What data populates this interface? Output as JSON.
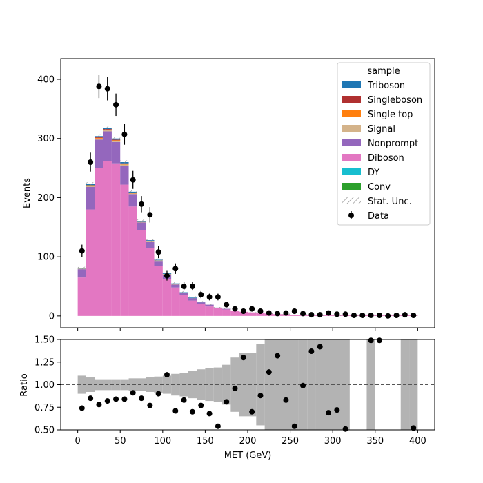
{
  "chart_data": [
    {
      "type": "bar",
      "stacked": true,
      "ylabel": "Events",
      "ylim": [
        -20,
        435
      ],
      "yticks": [
        0,
        100,
        200,
        300,
        400
      ],
      "xlim": [
        -20,
        420
      ],
      "bin_edges": [
        0,
        10,
        20,
        30,
        40,
        50,
        60,
        70,
        80,
        90,
        100,
        110,
        120,
        130,
        140,
        150,
        160,
        170,
        180,
        190,
        200,
        210,
        220,
        230,
        240,
        250,
        260,
        270,
        280,
        290,
        300,
        310,
        320,
        330,
        340,
        350,
        360,
        370,
        380,
        390,
        400
      ],
      "legend": {
        "title": "sample",
        "placement": "upper right"
      },
      "series": [
        {
          "name": "Diboson",
          "color": "#e377c2",
          "values": [
            65,
            180,
            250,
            262,
            258,
            222,
            185,
            145,
            115,
            85,
            62,
            48,
            35,
            26,
            20,
            16,
            13,
            11,
            8,
            7,
            6,
            5,
            4,
            3,
            3,
            2,
            2,
            2,
            1,
            1,
            1,
            1,
            1,
            1,
            1,
            1,
            1,
            1,
            1,
            1
          ]
        },
        {
          "name": "Nonprompt",
          "color": "#9467bd",
          "values": [
            14,
            38,
            48,
            50,
            36,
            32,
            21,
            13,
            11,
            8,
            8,
            5,
            4,
            4,
            3,
            3,
            1,
            1,
            1,
            0,
            0,
            0,
            0,
            0,
            0,
            0,
            0,
            0,
            0,
            0,
            0,
            0,
            0,
            0,
            0,
            0,
            0,
            0,
            0,
            0
          ]
        },
        {
          "name": "Signal",
          "color": "#d4b38a",
          "values": [
            1,
            2,
            2,
            2,
            2,
            2,
            1,
            1,
            1,
            1,
            1,
            1,
            0,
            0,
            0,
            0,
            0,
            0,
            0,
            0,
            0,
            0,
            0,
            0,
            0,
            0,
            0,
            0,
            0,
            0,
            0,
            0,
            0,
            0,
            0,
            0,
            0,
            0,
            0,
            0
          ]
        },
        {
          "name": "Single top",
          "color": "#ff7f0e",
          "values": [
            0,
            1,
            1,
            1,
            1,
            1,
            1,
            0,
            0,
            0,
            0,
            0,
            0,
            0,
            0,
            0,
            0,
            0,
            0,
            0,
            0,
            0,
            0,
            0,
            0,
            0,
            0,
            0,
            0,
            0,
            0,
            0,
            0,
            0,
            0,
            0,
            0,
            0,
            0,
            0
          ]
        },
        {
          "name": "Singleboson",
          "color": "#b03030",
          "values": [
            0,
            0,
            1,
            1,
            1,
            1,
            0,
            0,
            0,
            0,
            0,
            0,
            0,
            0,
            0,
            0,
            0,
            0,
            0,
            0,
            0,
            0,
            0,
            0,
            0,
            0,
            0,
            0,
            0,
            0,
            0,
            0,
            0,
            0,
            0,
            0,
            0,
            0,
            0,
            0
          ]
        },
        {
          "name": "Triboson",
          "color": "#1f77b4",
          "values": [
            1,
            2,
            2,
            2,
            2,
            2,
            2,
            1,
            1,
            1,
            1,
            1,
            1,
            1,
            1,
            0,
            0,
            0,
            0,
            0,
            0,
            0,
            0,
            0,
            0,
            0,
            0,
            0,
            0,
            0,
            0,
            0,
            0,
            0,
            0,
            0,
            0,
            0,
            0,
            0
          ]
        },
        {
          "name": "DY",
          "color": "#17becf",
          "values": []
        },
        {
          "name": "Conv",
          "color": "#2ca02c",
          "values": []
        }
      ],
      "uncertainty": {
        "name": "Stat. Unc.",
        "style": "hatched",
        "color": "#888888",
        "values": [
          2,
          3,
          3,
          3,
          3,
          3,
          3,
          3,
          2,
          2,
          2,
          2,
          2,
          2,
          1,
          1,
          1,
          1,
          1,
          1,
          1,
          1,
          1,
          1,
          1,
          1,
          1,
          1,
          1,
          1,
          1,
          1,
          1,
          1,
          1,
          1,
          1,
          1,
          1,
          1
        ]
      },
      "data": {
        "name": "Data",
        "color": "#000000",
        "x": [
          5,
          15,
          25,
          35,
          45,
          55,
          65,
          75,
          85,
          95,
          105,
          115,
          125,
          135,
          145,
          155,
          165,
          175,
          185,
          195,
          205,
          215,
          225,
          235,
          245,
          255,
          265,
          275,
          285,
          295,
          305,
          315,
          325,
          335,
          345,
          355,
          365,
          375,
          385,
          395
        ],
        "y": [
          110,
          260,
          388,
          384,
          357,
          307,
          230,
          189,
          171,
          108,
          68,
          80,
          50,
          50,
          36,
          32,
          32,
          19,
          12,
          8,
          12,
          8,
          5,
          4,
          5,
          8,
          4,
          2,
          2,
          5,
          3,
          3,
          1,
          1,
          1,
          1,
          0,
          1,
          2,
          1
        ],
        "yerr": [
          10.5,
          16,
          19.7,
          19.6,
          18.9,
          17.5,
          15.2,
          13.7,
          13.1,
          10.4,
          8.2,
          8.9,
          7.1,
          7.1,
          6,
          5.7,
          5.7,
          4.4,
          3.5,
          2.8,
          3.5,
          2.8,
          2.2,
          2,
          2.2,
          2.8,
          2,
          1.4,
          1.4,
          2.2,
          1.7,
          1.7,
          1,
          1,
          1,
          1,
          0,
          1,
          1.4,
          1
        ]
      }
    },
    {
      "type": "scatter",
      "xlabel": "MET (GeV)",
      "ylabel": "Ratio",
      "ylim": [
        0.5,
        1.5
      ],
      "yticks": [
        "0.50",
        "0.75",
        "1.00",
        "1.25",
        "1.50"
      ],
      "xticks": [
        0,
        50,
        100,
        150,
        200,
        250,
        300,
        350,
        400
      ],
      "xlim": [
        -20,
        420
      ],
      "reference_line": 1.0,
      "band_halfwidth": [
        0.1,
        0.08,
        0.06,
        0.06,
        0.06,
        0.06,
        0.07,
        0.07,
        0.08,
        0.09,
        0.1,
        0.12,
        0.13,
        0.15,
        0.17,
        0.18,
        0.19,
        0.22,
        0.3,
        0.35,
        0.35,
        0.45,
        0.5,
        0.55,
        0.6,
        0.65,
        0.7,
        0.75,
        0.8,
        0.9,
        0.9,
        1.0,
        0,
        0,
        1.0,
        0,
        0,
        0,
        1.0,
        1.0
      ],
      "points": {
        "x": [
          5,
          15,
          25,
          35,
          45,
          55,
          65,
          75,
          85,
          95,
          105,
          115,
          125,
          135,
          145,
          155,
          165,
          175,
          185,
          195,
          205,
          215,
          225,
          235,
          245,
          255,
          265,
          275,
          285,
          295,
          305,
          315,
          345,
          355,
          395
        ],
        "y": [
          0.74,
          0.85,
          0.78,
          0.82,
          0.84,
          0.84,
          0.91,
          0.85,
          0.77,
          0.9,
          1.11,
          0.71,
          0.83,
          0.7,
          0.77,
          0.68,
          0.54,
          0.81,
          0.96,
          1.3,
          0.7,
          0.88,
          1.14,
          1.32,
          0.83,
          0.54,
          0.99,
          1.37,
          1.42,
          0.69,
          0.72,
          0.51,
          1.49,
          1.49,
          0.52
        ]
      }
    }
  ]
}
